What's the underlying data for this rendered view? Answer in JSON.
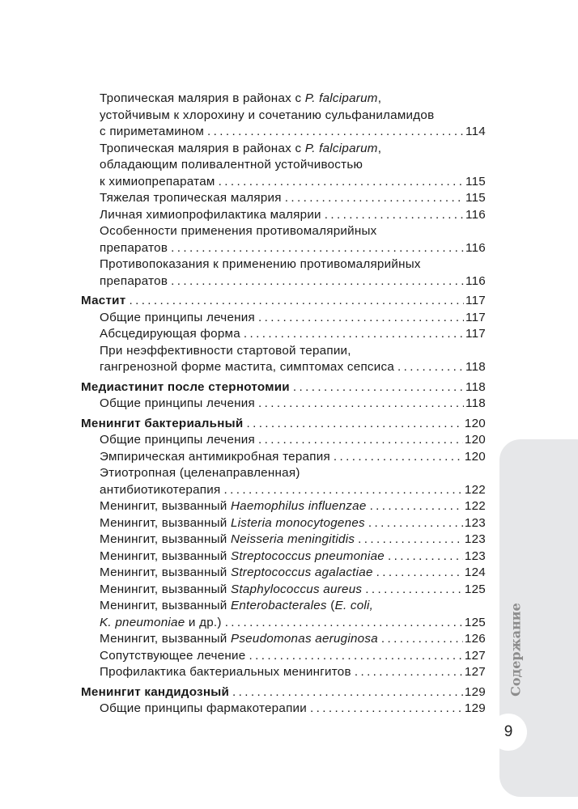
{
  "toc": [
    {
      "level": 2,
      "lines": [
        [
          {
            "t": "Тропическая малярия в районах с "
          },
          {
            "t": "P. falciparum",
            "i": true
          },
          {
            "t": ","
          }
        ],
        [
          {
            "t": "устойчивым к хлорохину и сочетанию сульфаниламидов"
          }
        ],
        [
          {
            "t": "с пириметамином"
          }
        ]
      ],
      "page": "114"
    },
    {
      "level": 2,
      "lines": [
        [
          {
            "t": "Тропическая малярия в районах с "
          },
          {
            "t": "P. falciparum",
            "i": true
          },
          {
            "t": ","
          }
        ],
        [
          {
            "t": "обладающим поливалентной устойчивостью"
          }
        ],
        [
          {
            "t": "к химиопрепаратам"
          }
        ]
      ],
      "page": "115"
    },
    {
      "level": 2,
      "lines": [
        [
          {
            "t": "Тяжелая тропическая малярия"
          }
        ]
      ],
      "page": "115"
    },
    {
      "level": 2,
      "lines": [
        [
          {
            "t": "Личная химиопрофилактика малярии"
          }
        ]
      ],
      "page": "116"
    },
    {
      "level": 2,
      "lines": [
        [
          {
            "t": "Особенности применения противомалярийных"
          }
        ],
        [
          {
            "t": "препаратов"
          }
        ]
      ],
      "page": "116"
    },
    {
      "level": 2,
      "lines": [
        [
          {
            "t": "Противопоказания к применению противомалярийных"
          }
        ],
        [
          {
            "t": "препаратов"
          }
        ]
      ],
      "page": "116"
    },
    {
      "level": 1,
      "lines": [
        [
          {
            "t": "Мастит"
          }
        ]
      ],
      "page": "117"
    },
    {
      "level": 2,
      "lines": [
        [
          {
            "t": "Общие принципы лечения"
          }
        ]
      ],
      "page": "117"
    },
    {
      "level": 2,
      "lines": [
        [
          {
            "t": "Абсцедирующая форма"
          }
        ]
      ],
      "page": "117"
    },
    {
      "level": 2,
      "lines": [
        [
          {
            "t": "При неэффективности стартовой терапии,"
          }
        ],
        [
          {
            "t": "гангренозной форме мастита, симптомах сепсиса"
          }
        ]
      ],
      "page": "118"
    },
    {
      "level": 1,
      "lines": [
        [
          {
            "t": "Медиастинит после стернотомии"
          }
        ]
      ],
      "page": "118"
    },
    {
      "level": 2,
      "lines": [
        [
          {
            "t": "Общие принципы лечения"
          }
        ]
      ],
      "page": "118"
    },
    {
      "level": 1,
      "lines": [
        [
          {
            "t": "Менингит бактериальный"
          }
        ]
      ],
      "page": "120"
    },
    {
      "level": 2,
      "lines": [
        [
          {
            "t": "Общие принципы лечения"
          }
        ]
      ],
      "page": "120"
    },
    {
      "level": 2,
      "lines": [
        [
          {
            "t": "Эмпирическая антимикробная терапия"
          }
        ]
      ],
      "page": "120"
    },
    {
      "level": 2,
      "lines": [
        [
          {
            "t": "Этиотропная (целенаправленная)"
          }
        ],
        [
          {
            "t": "антибиотикотерапия"
          }
        ]
      ],
      "page": "122"
    },
    {
      "level": 2,
      "lines": [
        [
          {
            "t": "Менингит, вызванный "
          },
          {
            "t": "Haemophilus influenzae",
            "i": true
          }
        ]
      ],
      "page": "122"
    },
    {
      "level": 2,
      "lines": [
        [
          {
            "t": "Менингит, вызванный "
          },
          {
            "t": "Listeria monocytogenes",
            "i": true
          }
        ]
      ],
      "page": "123"
    },
    {
      "level": 2,
      "lines": [
        [
          {
            "t": "Менингит, вызванный "
          },
          {
            "t": "Neisseria meningitidis",
            "i": true
          }
        ]
      ],
      "page": "123"
    },
    {
      "level": 2,
      "lines": [
        [
          {
            "t": "Менингит, вызванный "
          },
          {
            "t": "Streptococcus pneumoniae",
            "i": true
          }
        ]
      ],
      "page": "123"
    },
    {
      "level": 2,
      "lines": [
        [
          {
            "t": "Менингит, вызванный "
          },
          {
            "t": "Streptococcus agalactiae",
            "i": true
          }
        ]
      ],
      "page": "124"
    },
    {
      "level": 2,
      "lines": [
        [
          {
            "t": "Менингит, вызванный "
          },
          {
            "t": "Staphylococcus aureus",
            "i": true
          }
        ]
      ],
      "page": "125"
    },
    {
      "level": 2,
      "lines": [
        [
          {
            "t": "Менингит, вызванный "
          },
          {
            "t": "Enterobacterales",
            "i": true
          },
          {
            "t": " ("
          },
          {
            "t": "E. coli,",
            "i": true
          }
        ],
        [
          {
            "t": "K. pneumoniae",
            "i": true
          },
          {
            "t": " и др.)"
          }
        ]
      ],
      "page": "125"
    },
    {
      "level": 2,
      "lines": [
        [
          {
            "t": "Менингит, вызванный "
          },
          {
            "t": "Pseudomonas aeruginosa",
            "i": true
          }
        ]
      ],
      "page": "126"
    },
    {
      "level": 2,
      "lines": [
        [
          {
            "t": "Сопутствующее лечение"
          }
        ]
      ],
      "page": "127"
    },
    {
      "level": 2,
      "lines": [
        [
          {
            "t": "Профилактика бактериальных менингитов"
          }
        ]
      ],
      "page": "127"
    },
    {
      "level": 1,
      "lines": [
        [
          {
            "t": "Менингит кандидозный"
          }
        ]
      ],
      "page": "129"
    },
    {
      "level": 2,
      "lines": [
        [
          {
            "t": "Общие принципы фармакотерапии"
          }
        ]
      ],
      "page": "129"
    }
  ],
  "side_tab": {
    "label": "Содержание",
    "color": "#e6e7e9"
  },
  "page_number": "9"
}
